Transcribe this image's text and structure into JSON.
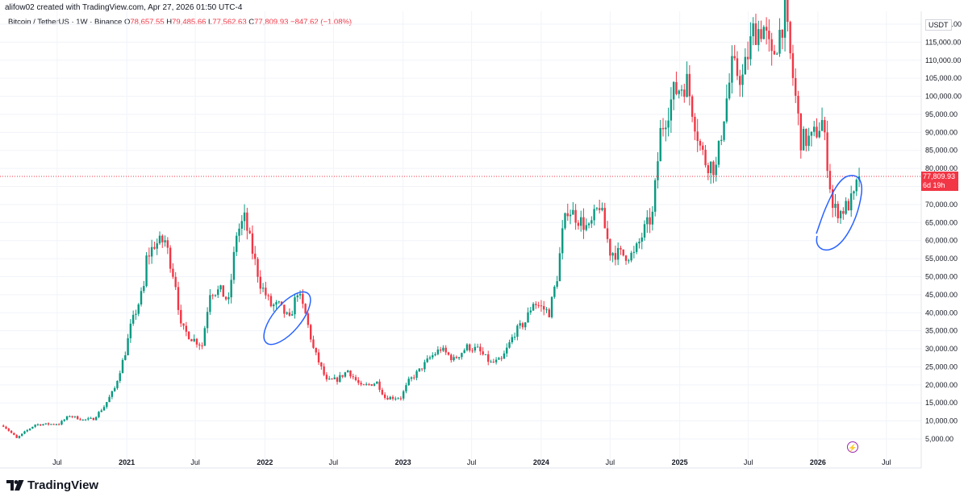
{
  "header": {
    "caption": "alifow02 created with TradingView.com, Apr 27, 2026 01:50 UTC-4"
  },
  "legend": {
    "symbol": "Bitcoin / TetherUS · 1W · Binance",
    "open_key": "O",
    "open": "78,657.55",
    "high_key": "H",
    "high": "79,485.66",
    "low_key": "L",
    "low": "77,562.63",
    "close_key": "C",
    "close": "77,809.93",
    "change": "−847.62 (−1.08%)"
  },
  "price_axis": {
    "currency": "USDT",
    "current_price": "77,809.93",
    "countdown": "6d 19h"
  },
  "footer": {
    "brand": "TradingView"
  },
  "icons": {
    "alert": "lightning-icon",
    "logo": "tradingview-logo-icon"
  },
  "colors": {
    "up": "#089981",
    "down": "#f23645",
    "annotation": "#2962ff",
    "grid": "#f0f3fa"
  },
  "chart_data": {
    "type": "candlestick",
    "y_ticks": [
      5000,
      10000,
      15000,
      20000,
      25000,
      30000,
      35000,
      40000,
      45000,
      50000,
      55000,
      60000,
      65000,
      70000,
      75000,
      80000,
      85000,
      90000,
      95000,
      100000,
      105000,
      110000,
      115000,
      120000
    ],
    "y_tick_labels": [
      "5,000.00",
      "10,000.00",
      "15,000.00",
      "20,000.00",
      "25,000.00",
      "30,000.00",
      "35,000.00",
      "40,000.00",
      "45,000.00",
      "50,000.00",
      "55,000.00",
      "60,000.00",
      "65,000.00",
      "70,000.00",
      "75,000.00",
      "80,000.00",
      "85,000.00",
      "90,000.00",
      "95,000.00",
      "100,000.00",
      "105,000.00",
      "110,000.00",
      "115,000.00",
      "120,000.00"
    ],
    "ylim": [
      0,
      125000
    ],
    "x_ticks": [
      {
        "label": "Jul",
        "date": "2020-07-01"
      },
      {
        "label": "2021",
        "date": "2021-01-01"
      },
      {
        "label": "Jul",
        "date": "2021-07-01"
      },
      {
        "label": "2022",
        "date": "2022-01-01"
      },
      {
        "label": "Jul",
        "date": "2022-07-01"
      },
      {
        "label": "2023",
        "date": "2023-01-01"
      },
      {
        "label": "Jul",
        "date": "2023-07-01"
      },
      {
        "label": "2024",
        "date": "2024-01-01"
      },
      {
        "label": "Jul",
        "date": "2024-07-01"
      },
      {
        "label": "2025",
        "date": "2025-01-01"
      },
      {
        "label": "Jul",
        "date": "2025-07-01"
      },
      {
        "label": "2026",
        "date": "2026-01-01"
      },
      {
        "label": "Jul",
        "date": "2026-07-01"
      }
    ],
    "xlim": [
      "2020-02-01",
      "2026-10-01"
    ],
    "current_price": 77809.93,
    "price_anchors": [
      [
        "2020-02-10",
        8700
      ],
      [
        "2020-03-09",
        6000
      ],
      [
        "2020-03-16",
        5200
      ],
      [
        "2020-04-06",
        6900
      ],
      [
        "2020-05-04",
        9000
      ],
      [
        "2020-07-06",
        9200
      ],
      [
        "2020-08-03",
        11500
      ],
      [
        "2020-09-07",
        10300
      ],
      [
        "2020-10-05",
        10600
      ],
      [
        "2020-11-02",
        14000
      ],
      [
        "2020-11-30",
        19000
      ],
      [
        "2020-12-28",
        29000
      ],
      [
        "2021-01-11",
        36000
      ],
      [
        "2021-02-15",
        47000
      ],
      [
        "2021-02-22",
        55000
      ],
      [
        "2021-03-15",
        59000
      ],
      [
        "2021-04-12",
        60000
      ],
      [
        "2021-05-10",
        48000
      ],
      [
        "2021-05-24",
        36000
      ],
      [
        "2021-06-21",
        33000
      ],
      [
        "2021-07-19",
        31000
      ],
      [
        "2021-08-09",
        46000
      ],
      [
        "2021-09-06",
        46000
      ],
      [
        "2021-09-27",
        43000
      ],
      [
        "2021-10-18",
        62000
      ],
      [
        "2021-11-08",
        66000
      ],
      [
        "2021-11-29",
        57000
      ],
      [
        "2021-12-20",
        48000
      ],
      [
        "2022-01-17",
        42000
      ],
      [
        "2022-02-07",
        42000
      ],
      [
        "2022-03-07",
        38000
      ],
      [
        "2022-03-28",
        46000
      ],
      [
        "2022-04-18",
        39500
      ],
      [
        "2022-05-09",
        30000
      ],
      [
        "2022-06-13",
        21000
      ],
      [
        "2022-07-11",
        21500
      ],
      [
        "2022-08-08",
        24000
      ],
      [
        "2022-09-12",
        19500
      ],
      [
        "2022-10-24",
        20700
      ],
      [
        "2022-11-14",
        16500
      ],
      [
        "2022-12-26",
        16500
      ],
      [
        "2023-01-16",
        21000
      ],
      [
        "2023-02-13",
        24000
      ],
      [
        "2023-03-13",
        27500
      ],
      [
        "2023-04-10",
        30000
      ],
      [
        "2023-05-15",
        27000
      ],
      [
        "2023-06-19",
        30500
      ],
      [
        "2023-07-17",
        29800
      ],
      [
        "2023-08-21",
        26000
      ],
      [
        "2023-09-18",
        26800
      ],
      [
        "2023-10-23",
        34500
      ],
      [
        "2023-11-20",
        37500
      ],
      [
        "2023-12-11",
        43000
      ],
      [
        "2024-01-22",
        40000
      ],
      [
        "2024-02-12",
        50000
      ],
      [
        "2024-02-26",
        62000
      ],
      [
        "2024-03-11",
        69000
      ],
      [
        "2024-04-08",
        66000
      ],
      [
        "2024-05-06",
        63000
      ],
      [
        "2024-06-03",
        70000
      ],
      [
        "2024-07-01",
        57000
      ],
      [
        "2024-08-05",
        56000
      ],
      [
        "2024-09-02",
        56000
      ],
      [
        "2024-09-30",
        63000
      ],
      [
        "2024-10-21",
        67000
      ],
      [
        "2024-11-11",
        90000
      ],
      [
        "2024-12-16",
        101000
      ],
      [
        "2025-01-20",
        104000
      ],
      [
        "2025-02-24",
        86000
      ],
      [
        "2025-03-10",
        82000
      ],
      [
        "2025-04-07",
        80000
      ],
      [
        "2025-04-28",
        95000
      ],
      [
        "2025-05-19",
        108000
      ],
      [
        "2025-06-16",
        105000
      ],
      [
        "2025-07-14",
        118000
      ],
      [
        "2025-08-11",
        119000
      ],
      [
        "2025-09-01",
        110000
      ],
      [
        "2025-10-06",
        123000
      ],
      [
        "2025-10-20",
        111000
      ],
      [
        "2025-11-17",
        88000
      ],
      [
        "2025-12-15",
        88000
      ],
      [
        "2026-01-12",
        93000
      ],
      [
        "2026-01-26",
        82000
      ],
      [
        "2026-02-09",
        69000
      ],
      [
        "2026-03-02",
        68000
      ],
      [
        "2026-03-23",
        70000
      ],
      [
        "2026-04-06",
        72000
      ],
      [
        "2026-04-20",
        77810
      ]
    ]
  }
}
